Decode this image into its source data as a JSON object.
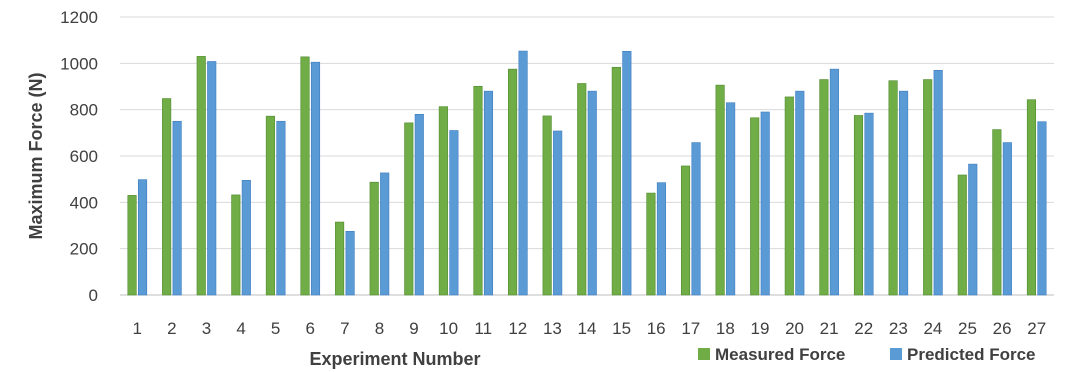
{
  "chart_data": {
    "type": "bar",
    "title": "",
    "xlabel": "Experiment Number",
    "ylabel": "Maximum Force (N)",
    "ylim": [
      0,
      1200
    ],
    "yticks": [
      0,
      200,
      400,
      600,
      800,
      1000,
      1200
    ],
    "grid": true,
    "legend_position": "bottom-right",
    "categories": [
      "1",
      "2",
      "3",
      "4",
      "5",
      "6",
      "7",
      "8",
      "9",
      "10",
      "11",
      "12",
      "13",
      "14",
      "15",
      "16",
      "17",
      "18",
      "19",
      "20",
      "21",
      "22",
      "23",
      "24",
      "25",
      "26",
      "27"
    ],
    "series": [
      {
        "name": "Measured Force",
        "color": "#70AD47",
        "values": [
          430,
          848,
          1030,
          432,
          772,
          1028,
          315,
          487,
          743,
          813,
          901,
          975,
          773,
          913,
          983,
          440,
          557,
          906,
          765,
          855,
          930,
          775,
          925,
          930,
          518,
          714,
          843
        ]
      },
      {
        "name": "Predicted Force",
        "color": "#5B9BD5",
        "values": [
          498,
          750,
          1008,
          495,
          750,
          1005,
          275,
          527,
          780,
          710,
          880,
          1053,
          708,
          880,
          1052,
          485,
          658,
          830,
          790,
          880,
          975,
          785,
          880,
          970,
          565,
          658,
          748
        ]
      }
    ]
  }
}
